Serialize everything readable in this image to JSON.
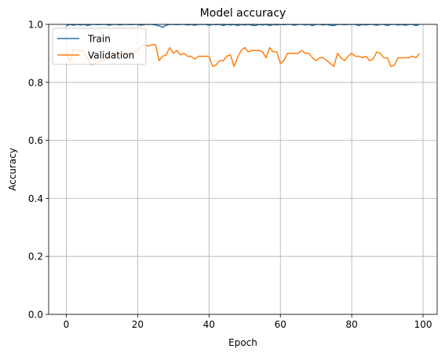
{
  "chart_data": {
    "type": "line",
    "title": "Model accuracy",
    "xlabel": "Epoch",
    "ylabel": "Accuracy",
    "xlim": [
      -4.95,
      103.95
    ],
    "ylim": [
      0.0,
      1.0
    ],
    "xticks": [
      0,
      20,
      40,
      60,
      80,
      100
    ],
    "yticks": [
      0.0,
      0.2,
      0.4,
      0.6,
      0.8,
      1.0
    ],
    "xtick_labels": [
      "0",
      "20",
      "40",
      "60",
      "80",
      "100"
    ],
    "ytick_labels": [
      "0.0",
      "0.2",
      "0.4",
      "0.6",
      "0.8",
      "1.0"
    ],
    "grid": true,
    "legend_position": "upper-left",
    "series": [
      {
        "name": "Train",
        "color": "#1f77b4",
        "x": [
          0,
          1,
          2,
          3,
          4,
          5,
          6,
          7,
          8,
          9,
          10,
          11,
          12,
          13,
          14,
          15,
          16,
          17,
          18,
          19,
          20,
          21,
          22,
          23,
          24,
          25,
          26,
          27,
          28,
          29,
          30,
          31,
          32,
          33,
          34,
          35,
          36,
          37,
          38,
          39,
          40,
          41,
          42,
          43,
          44,
          45,
          46,
          47,
          48,
          49,
          50,
          51,
          52,
          53,
          54,
          55,
          56,
          57,
          58,
          59,
          60,
          61,
          62,
          63,
          64,
          65,
          66,
          67,
          68,
          69,
          70,
          71,
          72,
          73,
          74,
          75,
          76,
          77,
          78,
          79,
          80,
          81,
          82,
          83,
          84,
          85,
          86,
          87,
          88,
          89,
          90,
          91,
          92,
          93,
          94,
          95,
          96,
          97,
          98,
          99
        ],
        "y": [
          0.995,
          1.0,
          0.997,
          1.0,
          0.998,
          1.0,
          0.996,
          1.0,
          1.0,
          0.999,
          1.0,
          1.0,
          0.997,
          1.0,
          1.0,
          0.998,
          1.0,
          1.0,
          0.999,
          1.0,
          1.0,
          0.997,
          1.0,
          1.0,
          1.0,
          0.998,
          0.995,
          0.99,
          0.997,
          1.0,
          1.0,
          0.999,
          1.0,
          1.0,
          0.998,
          1.0,
          0.997,
          1.0,
          1.0,
          1.0,
          0.997,
          1.0,
          0.999,
          1.0,
          0.996,
          1.0,
          0.998,
          1.0,
          0.996,
          1.0,
          0.998,
          1.0,
          0.997,
          0.996,
          1.0,
          0.998,
          1.0,
          0.996,
          1.0,
          0.998,
          1.0,
          0.999,
          1.0,
          1.0,
          0.997,
          1.0,
          1.0,
          0.998,
          1.0,
          0.996,
          1.0,
          1.0,
          0.998,
          1.0,
          0.997,
          0.996,
          1.0,
          1.0,
          0.999,
          1.0,
          1.0,
          1.0,
          0.996,
          1.0,
          0.998,
          1.0,
          1.0,
          0.997,
          1.0,
          1.0,
          0.996,
          1.0,
          1.0,
          0.998,
          1.0,
          0.997,
          1.0,
          1.0,
          0.996,
          1.0
        ]
      },
      {
        "name": "Validation",
        "color": "#ff7f0e",
        "x": [
          0,
          1,
          2,
          3,
          4,
          5,
          6,
          7,
          8,
          9,
          10,
          11,
          12,
          13,
          14,
          15,
          16,
          17,
          18,
          19,
          20,
          21,
          22,
          23,
          24,
          25,
          26,
          27,
          28,
          29,
          30,
          31,
          32,
          33,
          34,
          35,
          36,
          37,
          38,
          39,
          40,
          41,
          42,
          43,
          44,
          45,
          46,
          47,
          48,
          49,
          50,
          51,
          52,
          53,
          54,
          55,
          56,
          57,
          58,
          59,
          60,
          61,
          62,
          63,
          64,
          65,
          66,
          67,
          68,
          69,
          70,
          71,
          72,
          73,
          74,
          75,
          76,
          77,
          78,
          79,
          80,
          81,
          82,
          83,
          84,
          85,
          86,
          87,
          88,
          89,
          90,
          91,
          92,
          93,
          94,
          95,
          96,
          97,
          98,
          99
        ],
        "y": [
          0.905,
          0.87,
          0.915,
          0.91,
          0.91,
          0.905,
          0.88,
          0.86,
          0.865,
          0.87,
          0.875,
          0.88,
          0.89,
          0.9,
          0.895,
          0.895,
          0.9,
          0.895,
          0.9,
          0.905,
          0.91,
          0.925,
          0.93,
          0.925,
          0.93,
          0.93,
          0.875,
          0.89,
          0.895,
          0.92,
          0.9,
          0.91,
          0.895,
          0.9,
          0.89,
          0.89,
          0.88,
          0.89,
          0.89,
          0.89,
          0.89,
          0.855,
          0.86,
          0.875,
          0.875,
          0.89,
          0.895,
          0.855,
          0.885,
          0.91,
          0.92,
          0.905,
          0.91,
          0.91,
          0.91,
          0.905,
          0.885,
          0.92,
          0.905,
          0.905,
          0.865,
          0.875,
          0.9,
          0.9,
          0.9,
          0.9,
          0.91,
          0.9,
          0.9,
          0.885,
          0.875,
          0.885,
          0.885,
          0.875,
          0.865,
          0.855,
          0.9,
          0.885,
          0.875,
          0.89,
          0.9,
          0.89,
          0.89,
          0.885,
          0.89,
          0.875,
          0.88,
          0.905,
          0.9,
          0.885,
          0.885,
          0.855,
          0.86,
          0.885,
          0.885,
          0.885,
          0.885,
          0.89,
          0.885,
          0.9
        ]
      }
    ]
  }
}
